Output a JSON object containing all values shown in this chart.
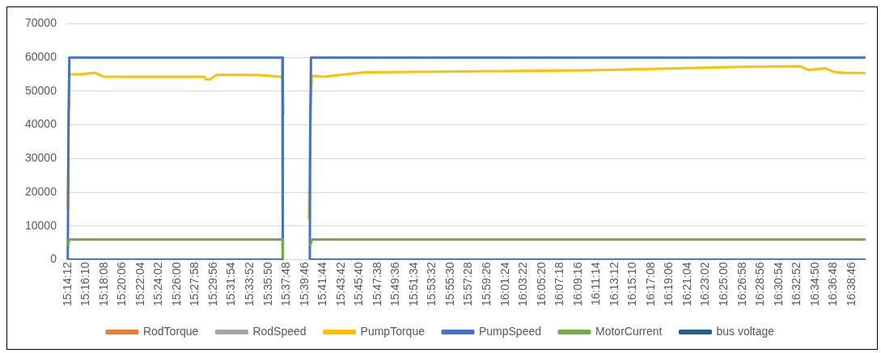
{
  "chart_data": {
    "type": "line",
    "xlim": [
      15.234,
      16.671
    ],
    "xticks": [
      {
        "value": 15.23667,
        "label": "15:14:12"
      },
      {
        "value": 15.26944,
        "label": "15:16:10"
      },
      {
        "value": 15.30222,
        "label": "15:18:08"
      },
      {
        "value": 15.335,
        "label": "15:20:06"
      },
      {
        "value": 15.36778,
        "label": "15:22:04"
      },
      {
        "value": 15.40056,
        "label": "15:24:02"
      },
      {
        "value": 15.43333,
        "label": "15:26:00"
      },
      {
        "value": 15.46611,
        "label": "15:27:58"
      },
      {
        "value": 15.49889,
        "label": "15:29:56"
      },
      {
        "value": 15.53167,
        "label": "15:31:54"
      },
      {
        "value": 15.56444,
        "label": "15:33:52"
      },
      {
        "value": 15.59722,
        "label": "15:35:50"
      },
      {
        "value": 15.63,
        "label": "15:37:48"
      },
      {
        "value": 15.66278,
        "label": "15:39:46"
      },
      {
        "value": 15.69556,
        "label": "15:41:44"
      },
      {
        "value": 15.72833,
        "label": "15:43:42"
      },
      {
        "value": 15.76111,
        "label": "15:45:40"
      },
      {
        "value": 15.79389,
        "label": "15:47:38"
      },
      {
        "value": 15.82667,
        "label": "15:49:36"
      },
      {
        "value": 15.85944,
        "label": "15:51:34"
      },
      {
        "value": 15.89222,
        "label": "15:53:32"
      },
      {
        "value": 15.925,
        "label": "15:55:30"
      },
      {
        "value": 15.95778,
        "label": "15:57:28"
      },
      {
        "value": 15.99056,
        "label": "15:59:26"
      },
      {
        "value": 16.02333,
        "label": "16:01:24"
      },
      {
        "value": 16.05611,
        "label": "16:03:22"
      },
      {
        "value": 16.08889,
        "label": "16:05:20"
      },
      {
        "value": 16.12167,
        "label": "16:07:18"
      },
      {
        "value": 16.15444,
        "label": "16:09:16"
      },
      {
        "value": 16.18722,
        "label": "16:11:14"
      },
      {
        "value": 16.22,
        "label": "16:13:12"
      },
      {
        "value": 16.25278,
        "label": "16:15:10"
      },
      {
        "value": 16.28556,
        "label": "16:17:08"
      },
      {
        "value": 16.31833,
        "label": "16:19:06"
      },
      {
        "value": 16.35111,
        "label": "16:21:04"
      },
      {
        "value": 16.38389,
        "label": "16:23:02"
      },
      {
        "value": 16.41667,
        "label": "16:25:00"
      },
      {
        "value": 16.44944,
        "label": "16:26:58"
      },
      {
        "value": 16.48222,
        "label": "16:28:56"
      },
      {
        "value": 16.515,
        "label": "16:30:54"
      },
      {
        "value": 16.54778,
        "label": "16:32:52"
      },
      {
        "value": 16.58056,
        "label": "16:34:50"
      },
      {
        "value": 16.61333,
        "label": "16:36:48"
      },
      {
        "value": 16.64611,
        "label": "16:38:46"
      }
    ],
    "ylim": [
      0,
      70000
    ],
    "yticks": [
      0,
      10000,
      20000,
      30000,
      40000,
      50000,
      60000,
      70000
    ],
    "grid": "y",
    "legend": "bottom",
    "marker": "none",
    "line_style": "solid",
    "series": [
      {
        "name": "RodTorque",
        "color": "#ed7d31"
      },
      {
        "name": "RodSpeed",
        "color": "#a5a5a5"
      },
      {
        "name": "PumpTorque",
        "color": "#ffc000",
        "x": [
          15.2367,
          15.2385,
          15.2395,
          15.26,
          15.2861,
          15.3006,
          15.4822,
          15.485,
          15.4924,
          15.504,
          15.5766,
          15.6203,
          15.6225,
          15.6245,
          15.645,
          15.67,
          15.6735,
          15.6754,
          15.6958,
          15.7699,
          16.1753,
          16.4455,
          16.5545,
          16.5677,
          16.5981,
          16.614,
          16.6344,
          16.6707
        ],
        "values": [
          15000,
          45000,
          55000,
          55000,
          55500,
          54300,
          54300,
          53500,
          53500,
          54800,
          54800,
          54300,
          54000,
          43000,
          null,
          12000,
          45000,
          54600,
          54300,
          55600,
          56200,
          57200,
          57400,
          56300,
          56800,
          55700,
          55400,
          55400
        ]
      },
      {
        "name": "PumpSpeed",
        "color": "#4472c4",
        "x": [
          15.2367,
          15.238,
          15.2395,
          15.6225,
          15.6232,
          15.645,
          15.6718,
          15.6725,
          15.674,
          16.6707
        ],
        "values": [
          0,
          40000,
          60000,
          60000,
          0,
          null,
          0,
          40000,
          60000,
          60000
        ]
      },
      {
        "name": "MotorCurrent",
        "color": "#70ad47",
        "x": [
          15.2367,
          15.2395,
          15.6225,
          15.6232,
          15.645,
          15.6718,
          15.676,
          16.6707
        ],
        "values": [
          4000,
          6000,
          6000,
          0,
          null,
          4000,
          6000,
          6000
        ]
      },
      {
        "name": "bus voltage",
        "color": "#255e91",
        "x": [
          15.2367,
          15.6232,
          15.645,
          15.6718,
          16.6707
        ],
        "values": [
          0,
          0,
          null,
          0,
          0
        ]
      }
    ]
  }
}
